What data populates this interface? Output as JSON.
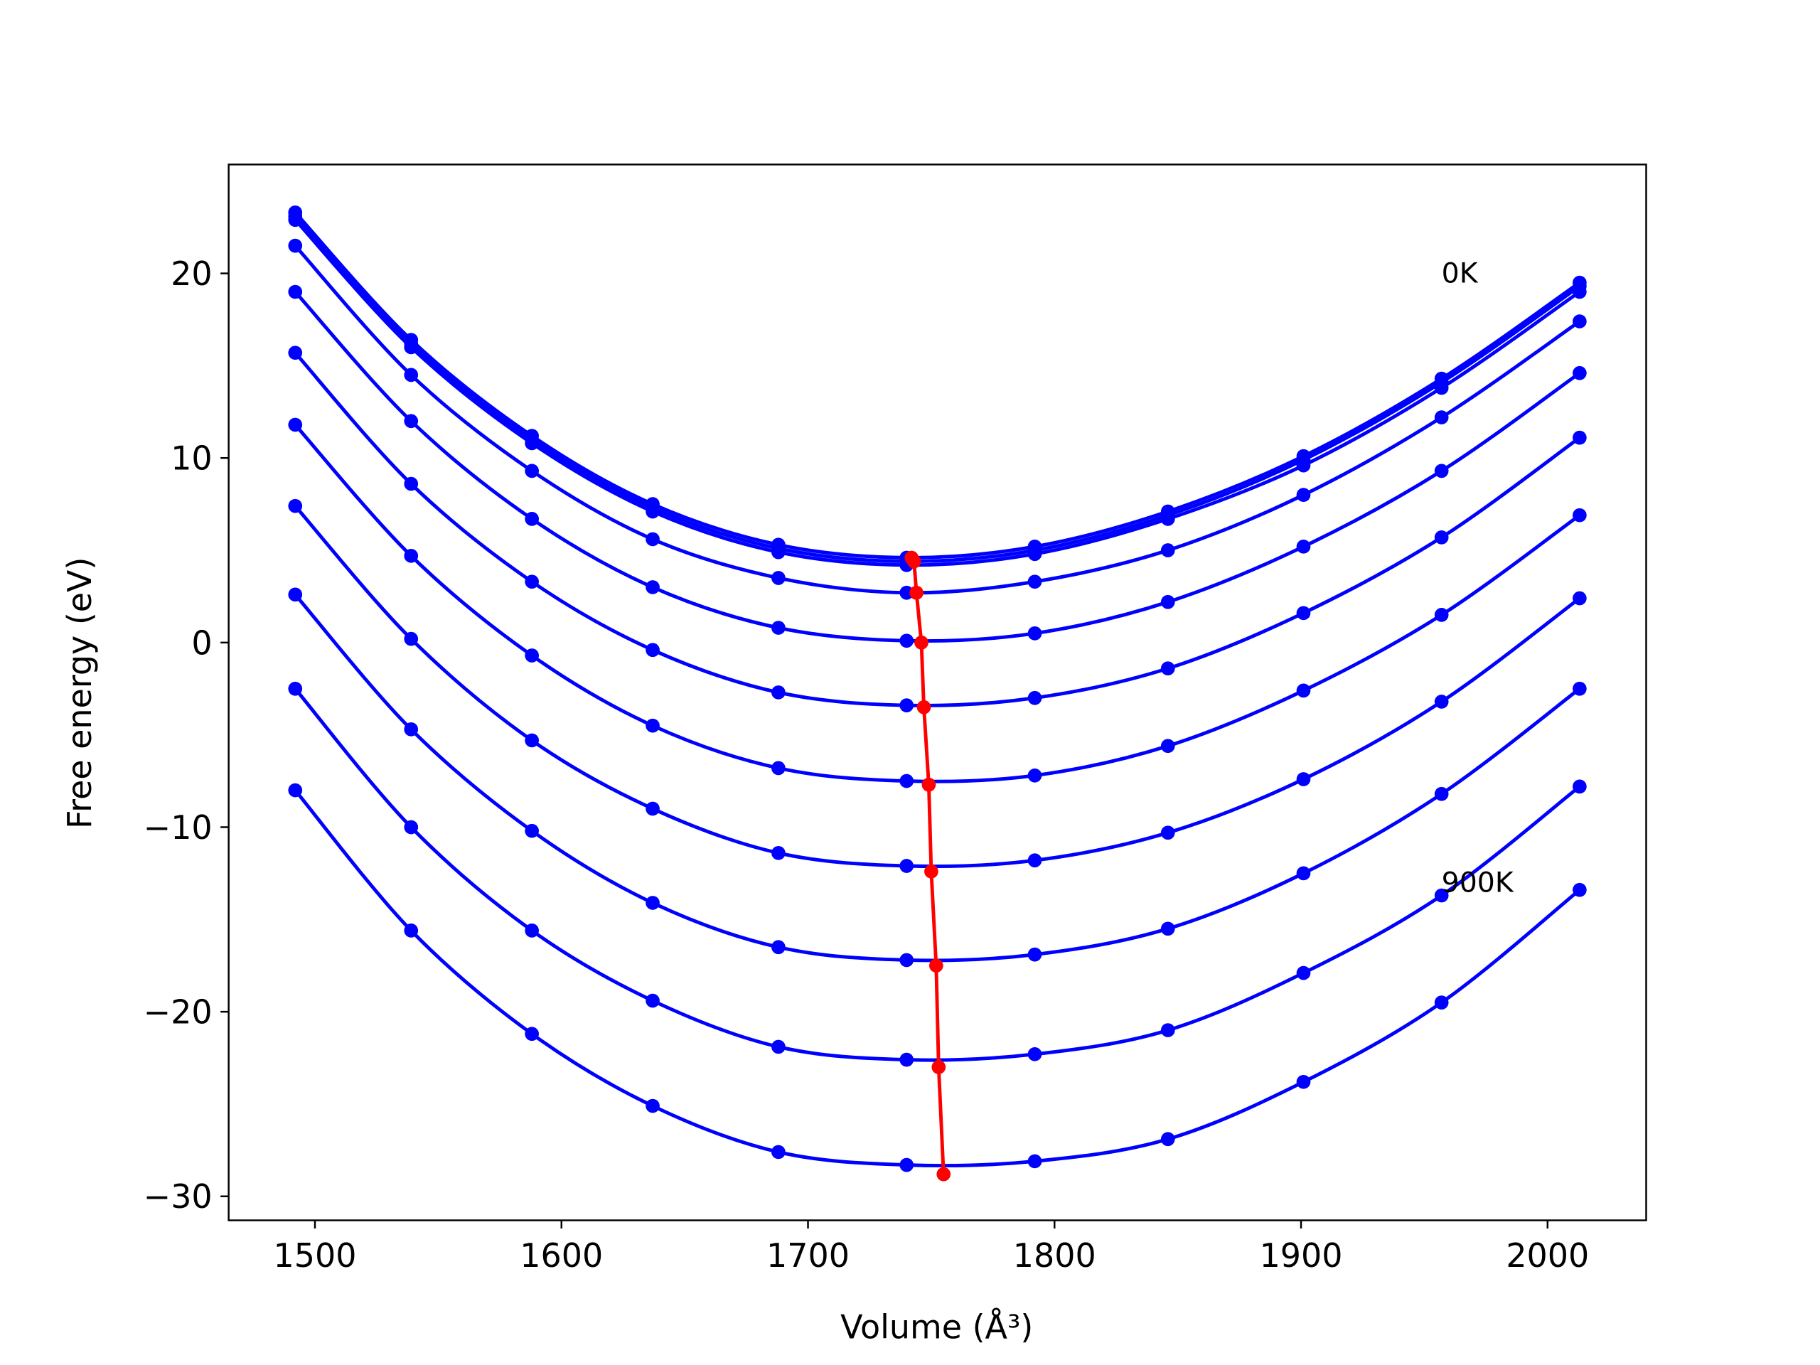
{
  "chart_data": {
    "type": "line",
    "xlabel": "Volume (Å³)",
    "ylabel": "Free energy (eV)",
    "x": [
      1492,
      1539,
      1588,
      1637,
      1688,
      1740,
      1792,
      1846,
      1901,
      1957,
      2013
    ],
    "series": [
      {
        "color": "#0000ff",
        "values": [
          23.3,
          16.4,
          11.2,
          7.5,
          5.3,
          4.6,
          5.2,
          7.1,
          10.1,
          14.3,
          19.5
        ]
      },
      {
        "color": "#0000ff",
        "values": [
          23.1,
          16.2,
          11.0,
          7.3,
          5.1,
          4.4,
          5.0,
          6.9,
          9.9,
          14.1,
          19.3
        ]
      },
      {
        "color": "#0000ff",
        "values": [
          22.9,
          16.0,
          10.8,
          7.1,
          4.9,
          4.2,
          4.8,
          6.7,
          9.6,
          13.8,
          19.0
        ]
      },
      {
        "color": "#0000ff",
        "values": [
          21.5,
          14.5,
          9.3,
          5.6,
          3.5,
          2.7,
          3.3,
          5.0,
          8.0,
          12.2,
          17.4
        ]
      },
      {
        "color": "#0000ff",
        "values": [
          19.0,
          12.0,
          6.7,
          3.0,
          0.8,
          0.1,
          0.5,
          2.2,
          5.2,
          9.3,
          14.6
        ]
      },
      {
        "color": "#0000ff",
        "values": [
          15.7,
          8.6,
          3.3,
          -0.4,
          -2.7,
          -3.4,
          -3.0,
          -1.4,
          1.6,
          5.7,
          11.1
        ]
      },
      {
        "color": "#0000ff",
        "values": [
          11.8,
          4.7,
          -0.7,
          -4.5,
          -6.8,
          -7.5,
          -7.2,
          -5.6,
          -2.6,
          1.5,
          6.9
        ]
      },
      {
        "color": "#0000ff",
        "values": [
          7.4,
          0.2,
          -5.3,
          -9.0,
          -11.4,
          -12.1,
          -11.8,
          -10.3,
          -7.4,
          -3.2,
          2.4
        ]
      },
      {
        "color": "#0000ff",
        "values": [
          2.6,
          -4.7,
          -10.2,
          -14.1,
          -16.5,
          -17.2,
          -16.9,
          -15.5,
          -12.5,
          -8.2,
          -2.5
        ]
      },
      {
        "color": "#0000ff",
        "values": [
          -2.5,
          -10.0,
          -15.6,
          -19.4,
          -21.9,
          -22.6,
          -22.3,
          -21.0,
          -17.9,
          -13.7,
          -7.8
        ]
      },
      {
        "color": "#0000ff",
        "values": [
          -8.0,
          -15.6,
          -21.2,
          -25.1,
          -27.6,
          -28.3,
          -28.1,
          -26.9,
          -23.8,
          -19.5,
          -13.4
        ]
      },
      {
        "color": "#ff0000",
        "x": [
          1742,
          1743,
          1744,
          1746,
          1747,
          1749,
          1750,
          1752,
          1753,
          1755
        ],
        "values": [
          4.6,
          4.4,
          2.7,
          0.0,
          -3.5,
          -7.7,
          -12.4,
          -17.5,
          -23.0,
          -28.8
        ]
      }
    ],
    "annotations": [
      {
        "text": "0K",
        "x": 1957,
        "y": 20
      },
      {
        "text": "900K",
        "x": 1957,
        "y": -13
      }
    ],
    "xlim": [
      1465,
      2040
    ],
    "ylim": [
      -31.3,
      25.9
    ],
    "xticks": [
      1500,
      1600,
      1700,
      1800,
      1900,
      2000
    ],
    "yticks": [
      {
        "value": -30,
        "label": "−30"
      },
      {
        "value": -20,
        "label": "−20"
      },
      {
        "value": -10,
        "label": "−10"
      },
      0,
      10,
      20
    ]
  }
}
